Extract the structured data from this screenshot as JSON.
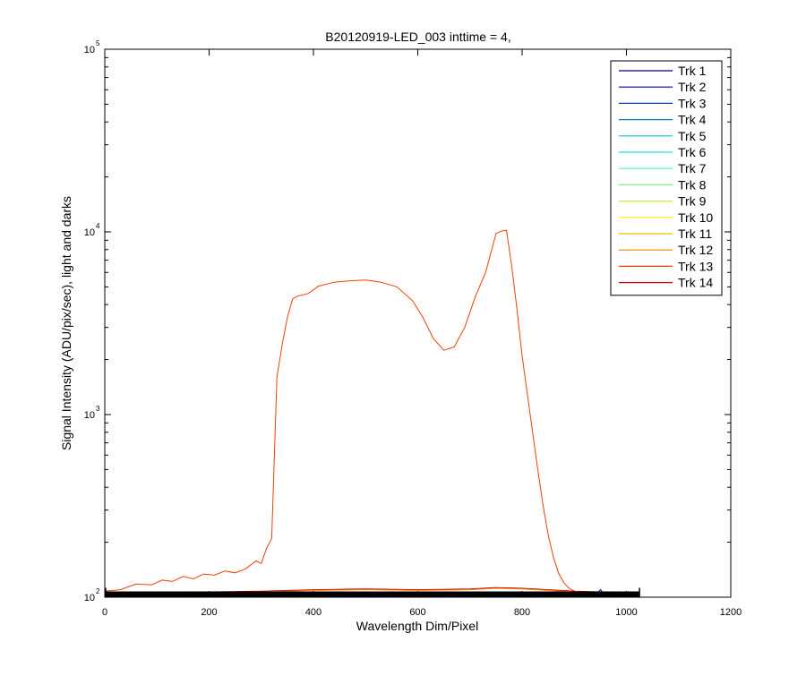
{
  "chart_data": {
    "type": "line",
    "title": "B20120919-LED_003 inttime = 4,",
    "xlabel": "Wavelength Dim/Pixel",
    "ylabel": "Signal Intensity (ADU/pix/sec), light and darks",
    "xlim": [
      0,
      1200
    ],
    "ylim": [
      100,
      100000
    ],
    "y_scale": "log",
    "x_ticks": [
      0,
      200,
      400,
      600,
      800,
      1000,
      1200
    ],
    "x_tick_labels": [
      "0",
      "200",
      "400",
      "600",
      "800",
      "1000",
      "1200"
    ],
    "y_ticks": [
      {
        "value": 100,
        "base": "10",
        "exp": "2"
      },
      {
        "value": 1000,
        "base": "10",
        "exp": "3"
      },
      {
        "value": 10000,
        "base": "10",
        "exp": "4"
      },
      {
        "value": 100000,
        "base": "10",
        "exp": "5"
      }
    ],
    "grid": false,
    "legend_position": "top-right",
    "legend": [
      {
        "label": "Trk 1",
        "color": "#00007f"
      },
      {
        "label": "Trk 2",
        "color": "#00009c"
      },
      {
        "label": "Trk 3",
        "color": "#0040c0"
      },
      {
        "label": "Trk 4",
        "color": "#0080c0"
      },
      {
        "label": "Trk 5",
        "color": "#00c0e0"
      },
      {
        "label": "Trk 6",
        "color": "#20e0e0"
      },
      {
        "label": "Trk 7",
        "color": "#40f0d0"
      },
      {
        "label": "Trk 8",
        "color": "#80f080"
      },
      {
        "label": "Trk 9",
        "color": "#c0f040"
      },
      {
        "label": "Trk 10",
        "color": "#f0f000"
      },
      {
        "label": "Trk 11",
        "color": "#f0c000"
      },
      {
        "label": "Trk 12",
        "color": "#f08000"
      },
      {
        "label": "Trk 13",
        "color": "#f04000"
      },
      {
        "label": "Trk 14",
        "color": "#d00000"
      }
    ],
    "series": [
      {
        "color": "#f04000",
        "x": [
          0,
          30,
          60,
          90,
          110,
          130,
          150,
          170,
          190,
          210,
          230,
          250,
          270,
          290,
          300,
          310,
          320,
          330,
          340,
          350,
          360,
          370,
          390,
          410,
          440,
          470,
          500,
          530,
          560,
          590,
          610,
          630,
          650,
          670,
          690,
          710,
          730,
          750,
          760,
          770,
          780,
          790,
          800,
          810,
          820,
          830,
          840,
          850,
          860,
          870,
          880,
          890,
          900,
          920,
          940,
          960,
          980,
          1000,
          1025
        ],
        "y": [
          108,
          110,
          118,
          117,
          124,
          122,
          130,
          126,
          134,
          132,
          139,
          136,
          143,
          158,
          153,
          185,
          210,
          1600,
          2400,
          3400,
          4300,
          4450,
          4600,
          5050,
          5300,
          5400,
          5450,
          5300,
          5000,
          4200,
          3400,
          2600,
          2250,
          2350,
          3000,
          4400,
          6000,
          9800,
          10100,
          10200,
          6500,
          3800,
          2100,
          1300,
          800,
          500,
          320,
          220,
          165,
          135,
          120,
          112,
          108,
          106,
          105,
          105,
          105,
          105,
          105
        ]
      },
      {
        "color": "#d00000",
        "x": [
          0,
          100,
          200,
          300,
          400,
          500,
          600,
          700,
          750,
          800,
          850,
          900,
          950,
          1025
        ],
        "y": [
          106,
          106,
          107,
          108,
          110,
          111,
          110,
          111,
          113,
          112,
          110,
          108,
          107,
          106
        ]
      },
      {
        "color": "#f08000",
        "x": [
          0,
          100,
          200,
          300,
          400,
          500,
          600,
          700,
          750,
          800,
          850,
          900,
          950,
          1025
        ],
        "y": [
          105,
          105,
          106,
          107,
          109,
          110,
          109,
          110,
          112,
          111,
          109,
          107,
          106,
          105
        ]
      },
      {
        "color": "#00007f",
        "x": [
          0,
          200,
          400,
          600,
          800,
          930,
          945,
          950,
          955,
          970,
          1025
        ],
        "y": [
          104,
          104,
          104,
          104,
          104,
          104,
          106,
          110,
          106,
          104,
          104
        ]
      },
      {
        "color": "#000000",
        "x": [
          0,
          1025
        ],
        "y": [
          104,
          104
        ]
      }
    ]
  }
}
